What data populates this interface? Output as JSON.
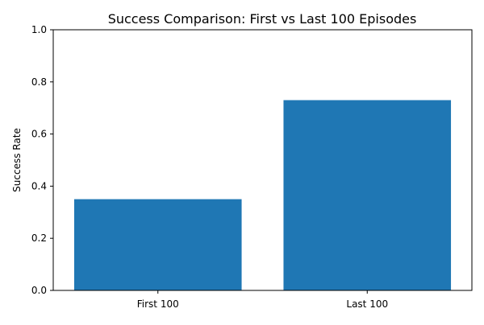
{
  "chart_data": {
    "type": "bar",
    "title": "Success Comparison: First vs Last 100 Episodes",
    "xlabel": "",
    "ylabel": "Success Rate",
    "categories": [
      "First 100",
      "Last 100"
    ],
    "values": [
      0.35,
      0.73
    ],
    "ylim": [
      0,
      1.0
    ],
    "yticks": [
      "0.0",
      "0.2",
      "0.4",
      "0.6",
      "0.8",
      "1.0"
    ],
    "bar_color": "#1f77b4",
    "grid": false,
    "legend": "none"
  }
}
